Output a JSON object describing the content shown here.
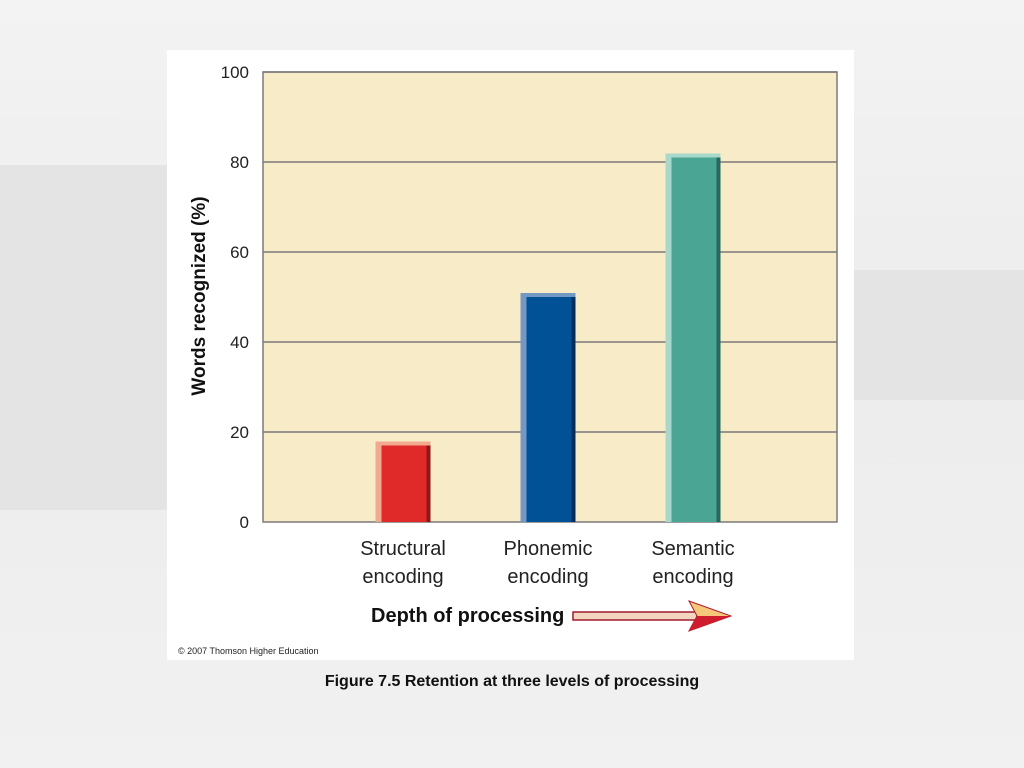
{
  "chart_data": {
    "type": "bar",
    "categories": [
      [
        "Structural",
        "encoding"
      ],
      [
        "Phonemic",
        "encoding"
      ],
      [
        "Semantic",
        "encoding"
      ]
    ],
    "values": [
      17,
      50,
      81
    ],
    "ylabel": "Words recognized (%)",
    "xlabel": "Depth of processing",
    "ylim": [
      0,
      100
    ],
    "yticks": [
      0,
      20,
      40,
      60,
      80,
      100
    ],
    "grid": true,
    "colors": {
      "plot_background": "#f8ebc7",
      "gridline": "#7a7a7a",
      "bars": [
        "#e02a2a",
        "#005196",
        "#4aa595"
      ],
      "bar_highlights": [
        "#f2aa8e",
        "#7398c4",
        "#a8d8cc"
      ],
      "bar_shadows": [
        "#8e1616",
        "#002e5e",
        "#26685d"
      ]
    }
  },
  "copyright": "© 2007 Thomson Higher Education",
  "caption": "Figure 7.5  Retention at three levels of processing"
}
